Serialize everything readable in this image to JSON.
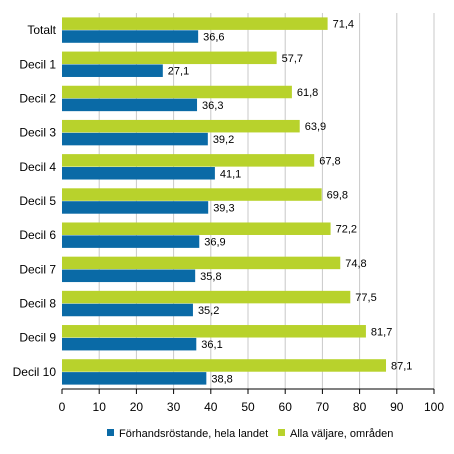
{
  "chart_data": {
    "type": "bar",
    "orientation": "horizontal",
    "categories": [
      "Totalt",
      "Decil 1",
      "Decil 2",
      "Decil 3",
      "Decil 4",
      "Decil 5",
      "Decil 6",
      "Decil 7",
      "Decil 8",
      "Decil 9",
      "Decil 10"
    ],
    "series": [
      {
        "name": "Förhandsröstande, hela landet",
        "color": "#0a6aa6",
        "values": [
          36.6,
          27.1,
          36.3,
          39.2,
          41.1,
          39.3,
          36.9,
          35.8,
          35.2,
          36.1,
          38.8
        ],
        "labels": [
          "36,6",
          "27,1",
          "36,3",
          "39,2",
          "41,1",
          "39,3",
          "36,9",
          "35,8",
          "35,2",
          "36,1",
          "38,8"
        ]
      },
      {
        "name": "Alla väljare, områden",
        "color": "#b8d22c",
        "values": [
          71.4,
          57.7,
          61.8,
          63.9,
          67.8,
          69.8,
          72.2,
          74.8,
          77.5,
          81.7,
          87.1
        ],
        "labels": [
          "71,4",
          "57,7",
          "61,8",
          "63,9",
          "67,8",
          "69,8",
          "72,2",
          "74,8",
          "77,5",
          "81,7",
          "87,1"
        ]
      }
    ],
    "xlim": [
      0,
      100
    ],
    "ticks": [
      0,
      10,
      20,
      30,
      40,
      50,
      60,
      70,
      80,
      90,
      100
    ],
    "tick_labels": [
      "0",
      "10",
      "20",
      "30",
      "40",
      "50",
      "60",
      "70",
      "80",
      "90",
      "100"
    ],
    "title": "",
    "xlabel": "",
    "ylabel": "",
    "grid": true,
    "legend_position": "bottom"
  }
}
